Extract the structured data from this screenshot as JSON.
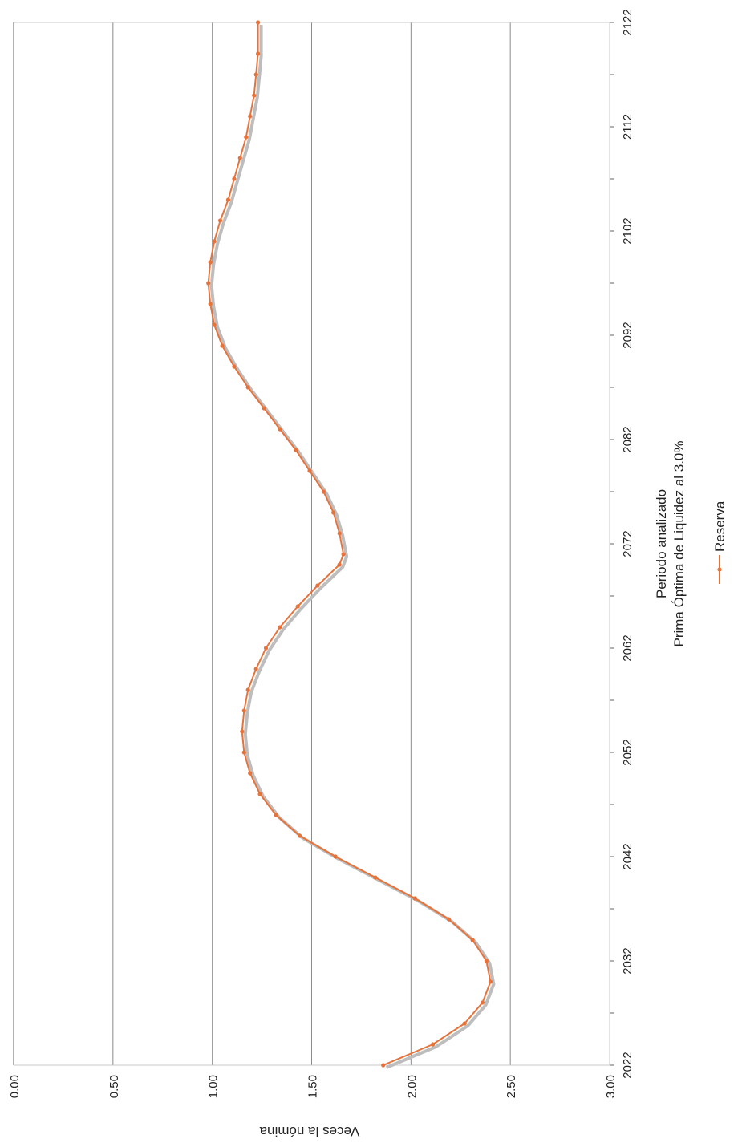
{
  "chart_data": {
    "type": "line",
    "orientation": "rotated-90-clockwise",
    "xlabel": "Periodo analizado",
    "subtitle": "Prima Óptima de Liquidez al 3.0%",
    "ylabel": "Veces la nómina",
    "xlim": [
      2022,
      2122
    ],
    "ylim": [
      0,
      3
    ],
    "x_ticks": [
      "2022",
      "2032",
      "2042",
      "2052",
      "2062",
      "2072",
      "2082",
      "2092",
      "2102",
      "2112",
      "2122"
    ],
    "y_ticks": [
      "0.00",
      "0.50",
      "1.00",
      "1.50",
      "2.00",
      "2.50",
      "3.00"
    ],
    "grid": true,
    "legend_position": "bottom",
    "series": [
      {
        "name": "Reserva",
        "color": "#E8733A",
        "x": [
          2022,
          2024,
          2026,
          2028,
          2030,
          2032,
          2034,
          2036,
          2038,
          2040,
          2042,
          2044,
          2046,
          2048,
          2050,
          2052,
          2054,
          2056,
          2058,
          2060,
          2062,
          2064,
          2066,
          2068,
          2070,
          2071,
          2073,
          2075,
          2077,
          2079,
          2081,
          2083,
          2085,
          2087,
          2089,
          2091,
          2093,
          2095,
          2097,
          2099,
          2101,
          2103,
          2105,
          2107,
          2109,
          2111,
          2113,
          2115,
          2117,
          2119,
          2122
        ],
        "values": [
          1.86,
          2.11,
          2.27,
          2.36,
          2.4,
          2.38,
          2.31,
          2.19,
          2.02,
          1.82,
          1.62,
          1.44,
          1.32,
          1.24,
          1.19,
          1.16,
          1.15,
          1.16,
          1.18,
          1.22,
          1.27,
          1.34,
          1.43,
          1.53,
          1.64,
          1.66,
          1.64,
          1.61,
          1.56,
          1.49,
          1.42,
          1.34,
          1.26,
          1.18,
          1.11,
          1.05,
          1.01,
          0.99,
          0.98,
          0.99,
          1.01,
          1.04,
          1.08,
          1.11,
          1.14,
          1.17,
          1.19,
          1.21,
          1.22,
          1.23,
          1.23
        ]
      }
    ]
  }
}
